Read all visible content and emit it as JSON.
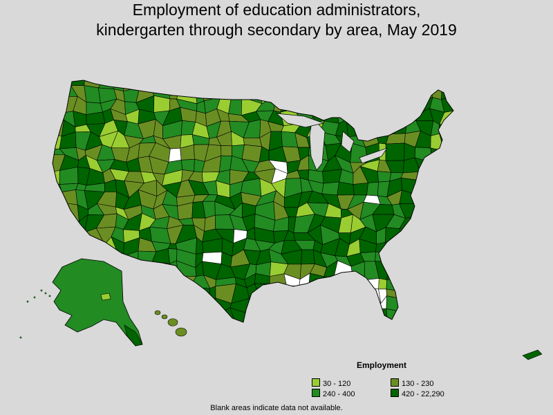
{
  "title": {
    "line1": "Employment of education administrators,",
    "line2": "kindergarten through secondary by area, May 2019"
  },
  "legend": {
    "title": "Employment",
    "items": [
      {
        "label": "30 - 120",
        "color": "#9acd32"
      },
      {
        "label": "130 - 230",
        "color": "#6b8e23"
      },
      {
        "label": "240 - 400",
        "color": "#228b22"
      },
      {
        "label": "420 - 22,290",
        "color": "#006400"
      }
    ]
  },
  "footnote": "Blank areas indicate data not available.",
  "colors": {
    "background": "#d9d9d9",
    "no_data": "#ffffff",
    "border": "#000000"
  }
}
